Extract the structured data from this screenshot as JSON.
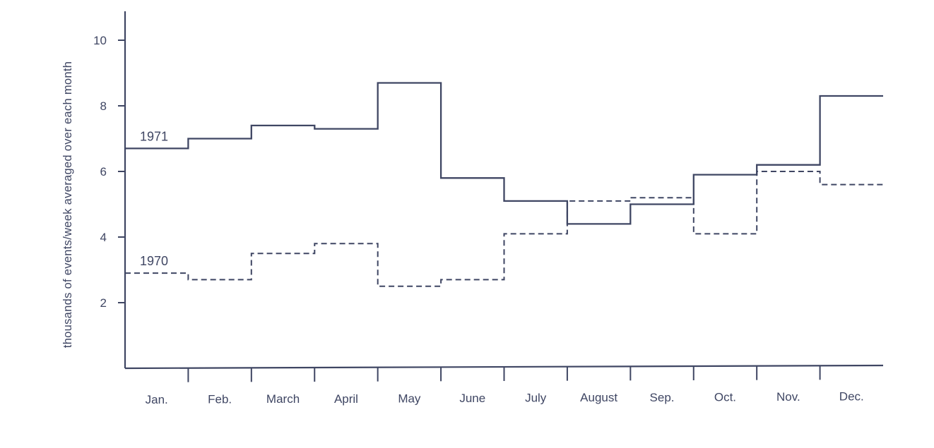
{
  "chart_data": {
    "type": "line",
    "step": true,
    "categories": [
      "Jan.",
      "Feb.",
      "March",
      "April",
      "May",
      "June",
      "July",
      "August",
      "Sep.",
      "Oct.",
      "Nov.",
      "Dec."
    ],
    "ylabel": "thousands of events/week averaged over each month",
    "xlabel": "",
    "ylim": [
      0,
      11
    ],
    "yticks": [
      2,
      4,
      6,
      8,
      10
    ],
    "grid": false,
    "series": [
      {
        "name": "1971",
        "style": "solid",
        "values": [
          6.7,
          7.0,
          7.4,
          7.3,
          8.7,
          5.8,
          5.1,
          4.4,
          5.0,
          5.9,
          6.2,
          8.3
        ]
      },
      {
        "name": "1970",
        "style": "dashed",
        "values": [
          2.9,
          2.7,
          3.5,
          3.8,
          2.5,
          2.7,
          4.1,
          5.1,
          5.2,
          4.1,
          6.0,
          5.6
        ]
      }
    ]
  }
}
